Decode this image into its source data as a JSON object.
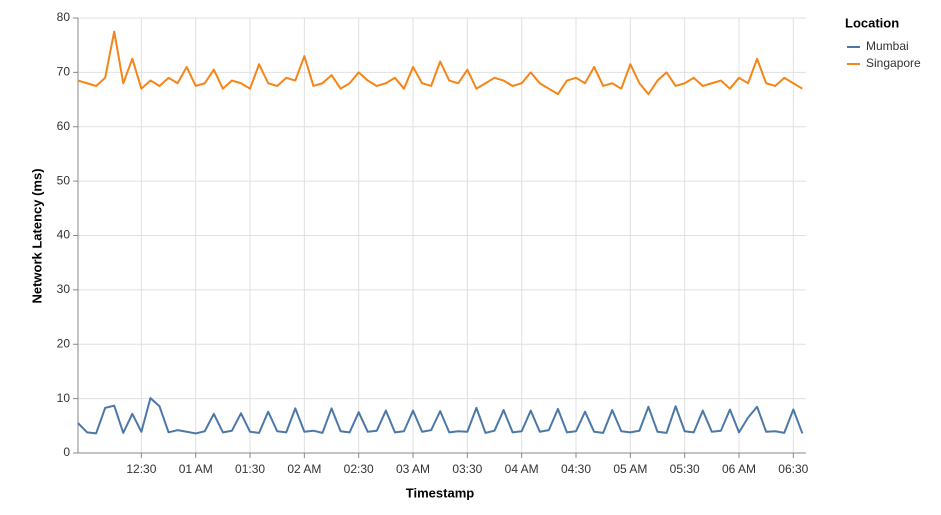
{
  "chart_data": {
    "type": "line",
    "x_label": "Timestamp",
    "y_label": "Network Latency (ms)",
    "legend_title": "Location",
    "x": [
      "23:55",
      "00:00",
      "00:05",
      "00:10",
      "00:15",
      "00:20",
      "00:25",
      "00:30",
      "00:35",
      "00:40",
      "00:45",
      "00:50",
      "00:55",
      "01:00",
      "01:05",
      "01:10",
      "01:15",
      "01:20",
      "01:25",
      "01:30",
      "01:35",
      "01:40",
      "01:45",
      "01:50",
      "01:55",
      "02:00",
      "02:05",
      "02:10",
      "02:15",
      "02:20",
      "02:25",
      "02:30",
      "02:35",
      "02:40",
      "02:45",
      "02:50",
      "02:55",
      "03:00",
      "03:05",
      "03:10",
      "03:15",
      "03:20",
      "03:25",
      "03:30",
      "03:35",
      "03:40",
      "03:45",
      "03:50",
      "03:55",
      "04:00",
      "04:05",
      "04:10",
      "04:15",
      "04:20",
      "04:25",
      "04:30",
      "04:35",
      "04:40",
      "04:45",
      "04:50",
      "04:55",
      "05:00",
      "05:05",
      "05:10",
      "05:15",
      "05:20",
      "05:25",
      "05:30",
      "05:35",
      "05:40",
      "05:45",
      "05:50",
      "05:55",
      "06:00",
      "06:05",
      "06:10",
      "06:15",
      "06:20",
      "06:25",
      "06:30",
      "06:35"
    ],
    "series": [
      {
        "name": "Mumbai",
        "color": "#4c78a8",
        "values": [
          5.5,
          3.8,
          3.6,
          8.3,
          8.7,
          3.7,
          7.2,
          3.9,
          10.1,
          8.6,
          3.8,
          4.2,
          3.9,
          3.6,
          4.0,
          7.2,
          3.8,
          4.1,
          7.3,
          3.9,
          3.7,
          7.6,
          4.0,
          3.8,
          8.2,
          3.9,
          4.1,
          3.7,
          8.2,
          4.0,
          3.8,
          7.5,
          3.9,
          4.1,
          7.8,
          3.8,
          4.0,
          7.8,
          3.9,
          4.2,
          7.7,
          3.8,
          4.0,
          3.9,
          8.3,
          3.7,
          4.1,
          7.9,
          3.8,
          4.0,
          7.8,
          3.9,
          4.2,
          8.1,
          3.8,
          4.0,
          7.6,
          3.9,
          3.7,
          7.9,
          4.0,
          3.8,
          4.1,
          8.5,
          3.9,
          3.7,
          8.6,
          4.0,
          3.8,
          7.8,
          3.9,
          4.1,
          8.0,
          3.8,
          6.5,
          8.5,
          3.9,
          4.0,
          3.7,
          8.0,
          3.6
        ]
      },
      {
        "name": "Singapore",
        "color": "#f58518",
        "values": [
          68.5,
          68,
          67.5,
          69,
          77.5,
          68,
          72.5,
          67,
          68.5,
          67.5,
          69,
          68,
          71,
          67.5,
          68,
          70.5,
          67,
          68.5,
          68,
          67,
          71.5,
          68,
          67.5,
          69,
          68.5,
          73,
          67.5,
          68,
          69.5,
          67,
          68,
          70,
          68.5,
          67.5,
          68,
          69,
          67,
          71,
          68,
          67.5,
          72,
          68.5,
          68,
          70.5,
          67,
          68,
          69,
          68.5,
          67.5,
          68,
          70,
          68,
          67,
          66,
          68.5,
          69,
          68,
          71,
          67.5,
          68,
          67,
          71.5,
          68,
          66,
          68.5,
          70,
          67.5,
          68,
          69,
          67.5,
          68,
          68.5,
          67,
          69,
          68,
          72.5,
          68,
          67.5,
          69,
          68,
          67
        ]
      }
    ],
    "xlim": [
      "23:55",
      "06:37"
    ],
    "xticks": [
      {
        "value": "00:30",
        "label": "12:30"
      },
      {
        "value": "01:00",
        "label": "01 AM"
      },
      "01:30",
      {
        "value": "02:00",
        "label": "02 AM"
      },
      "02:30",
      {
        "value": "03:00",
        "label": "03 AM"
      },
      "03:30",
      {
        "value": "04:00",
        "label": "04 AM"
      },
      "04:30",
      {
        "value": "05:00",
        "label": "05 AM"
      },
      "05:30",
      {
        "value": "06:00",
        "label": "06 AM"
      },
      "06:30"
    ],
    "ylim": [
      0,
      80
    ],
    "yticks": [
      0,
      10,
      20,
      30,
      40,
      50,
      60,
      70,
      80
    ],
    "grid": true
  }
}
